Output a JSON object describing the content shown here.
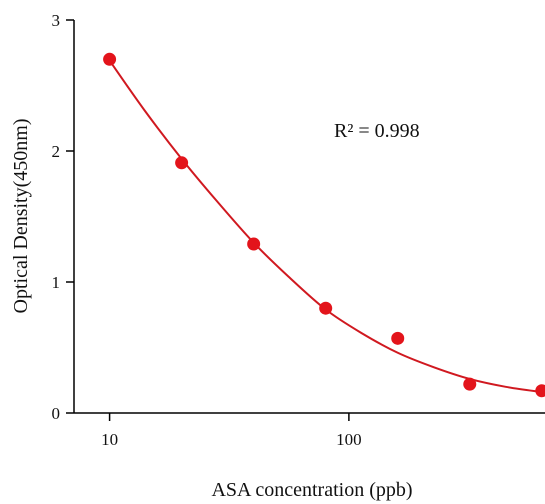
{
  "chart_data": {
    "type": "scatter",
    "xlabel": "ASA concentration (ppb)",
    "ylabel": "Optical Density(450nm)",
    "x_scale": "log",
    "xlim": [
      7.1,
      660
    ],
    "ylim": [
      0,
      3
    ],
    "x_ticks": [
      10,
      100
    ],
    "y_ticks": [
      0,
      1,
      2,
      3
    ],
    "annotation": "R² = 0.998",
    "grid": false,
    "legend": "none",
    "point_color": "#e3141b",
    "curve_color": "#d01920",
    "series": [
      {
        "points": [
          {
            "x": 10,
            "y": 2.7
          },
          {
            "x": 20,
            "y": 1.91
          },
          {
            "x": 40,
            "y": 1.29
          },
          {
            "x": 80,
            "y": 0.8
          },
          {
            "x": 160,
            "y": 0.57
          },
          {
            "x": 320,
            "y": 0.22
          },
          {
            "x": 640,
            "y": 0.17
          }
        ]
      }
    ],
    "fit_curve": [
      {
        "x": 10,
        "y": 2.69
      },
      {
        "x": 14,
        "y": 2.31
      },
      {
        "x": 20,
        "y": 1.94
      },
      {
        "x": 28,
        "y": 1.62
      },
      {
        "x": 40,
        "y": 1.3
      },
      {
        "x": 56,
        "y": 1.04
      },
      {
        "x": 80,
        "y": 0.79
      },
      {
        "x": 113,
        "y": 0.61
      },
      {
        "x": 160,
        "y": 0.46
      },
      {
        "x": 226,
        "y": 0.35
      },
      {
        "x": 320,
        "y": 0.26
      },
      {
        "x": 452,
        "y": 0.2
      },
      {
        "x": 640,
        "y": 0.16
      }
    ]
  }
}
